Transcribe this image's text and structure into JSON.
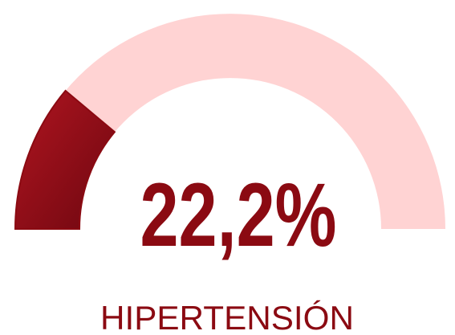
{
  "chart_data": {
    "type": "gauge",
    "title": "HIPERTENSIÓN",
    "value": 22.2,
    "value_label": "22,2%",
    "ylim": [
      0,
      100
    ],
    "color": "#8b0a12",
    "track_color": "#ffd3d3"
  }
}
